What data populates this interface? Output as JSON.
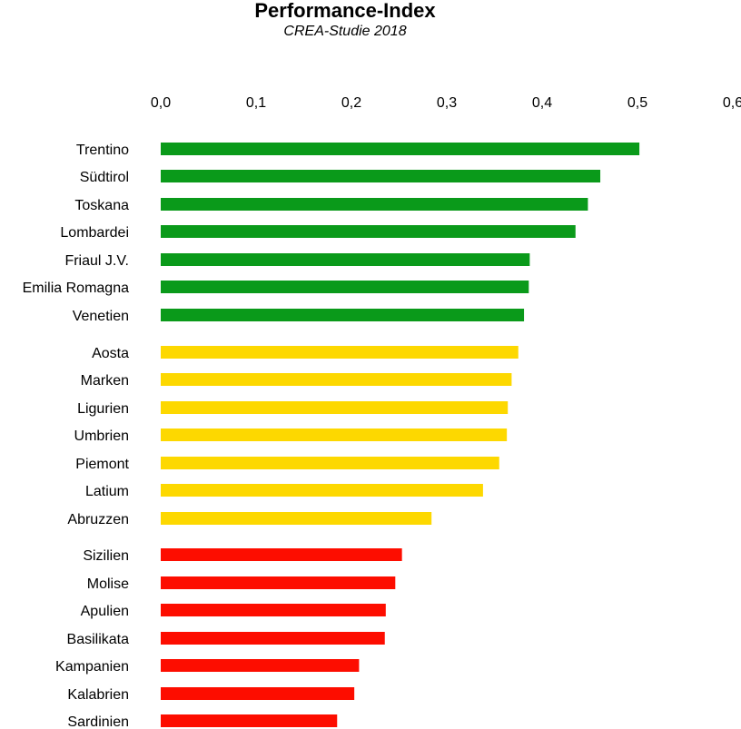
{
  "chart_data": {
    "type": "bar",
    "orientation": "horizontal",
    "title": "Performance-Index",
    "subtitle": "CREA-Studie 2018",
    "xlim": [
      0,
      0.6
    ],
    "x_ticks": [
      "0,0",
      "0,1",
      "0,2",
      "0,3",
      "0,4",
      "0,5",
      "0,6"
    ],
    "x_tick_values": [
      0,
      0.1,
      0.2,
      0.3,
      0.4,
      0.5,
      0.6
    ],
    "x_axis_position": "top",
    "grid": false,
    "categories": [
      "Trentino",
      "Südtirol",
      "Toskana",
      "Lombardei",
      "Friaul J.V.",
      "Emilia Romagna",
      "Venetien",
      "Aosta",
      "Marken",
      "Ligurien",
      "Umbrien",
      "Piemont",
      "Latium",
      "Abruzzen",
      "Sizilien",
      "Molise",
      "Apulien",
      "Basilikata",
      "Kampanien",
      "Kalabrien",
      "Sardinien"
    ],
    "values": [
      0.502,
      0.461,
      0.448,
      0.435,
      0.387,
      0.386,
      0.381,
      0.375,
      0.368,
      0.364,
      0.363,
      0.355,
      0.338,
      0.284,
      0.253,
      0.246,
      0.236,
      0.235,
      0.208,
      0.203,
      0.185
    ],
    "groups": [
      {
        "color": "#0a9a1a",
        "count": 7
      },
      {
        "color": "#fdd800",
        "count": 7
      },
      {
        "color": "#fd0d00",
        "count": 7
      }
    ]
  }
}
